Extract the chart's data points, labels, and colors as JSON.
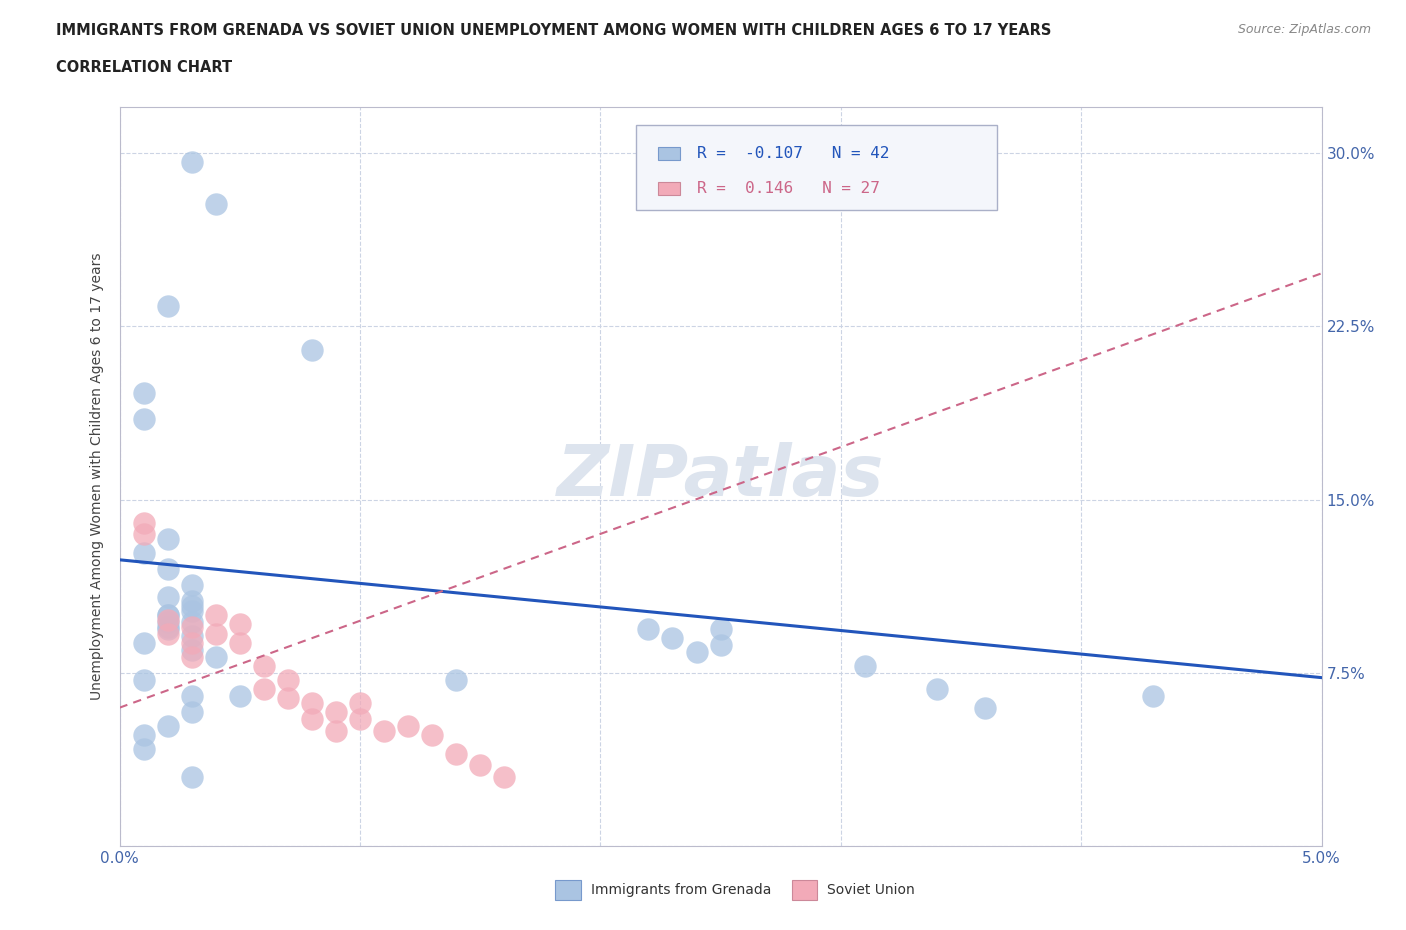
{
  "title_line1": "IMMIGRANTS FROM GRENADA VS SOVIET UNION UNEMPLOYMENT AMONG WOMEN WITH CHILDREN AGES 6 TO 17 YEARS",
  "title_line2": "CORRELATION CHART",
  "source_text": "Source: ZipAtlas.com",
  "ylabel": "Unemployment Among Women with Children Ages 6 to 17 years",
  "xlim": [
    0.0,
    0.05
  ],
  "ylim": [
    0.0,
    0.32
  ],
  "yticks": [
    0.0,
    0.075,
    0.15,
    0.225,
    0.3
  ],
  "yticklabels_right": [
    "",
    "7.5%",
    "15.0%",
    "22.5%",
    "30.0%"
  ],
  "xticks": [
    0.0,
    0.01,
    0.02,
    0.03,
    0.04,
    0.05
  ],
  "xticklabels": [
    "0.0%",
    "",
    "",
    "",
    "",
    "5.0%"
  ],
  "grenada_R": -0.107,
  "grenada_N": 42,
  "soviet_R": 0.146,
  "soviet_N": 27,
  "grenada_color": "#aac4e2",
  "soviet_color": "#f2aab8",
  "grenada_line_color": "#2255bb",
  "soviet_line_color": "#cc6688",
  "watermark_color": "#dde4ee",
  "grenada_label": "Immigrants from Grenada",
  "soviet_label": "Soviet Union",
  "grenada_scatter_x": [
    0.003,
    0.004,
    0.002,
    0.008,
    0.001,
    0.001,
    0.002,
    0.001,
    0.002,
    0.003,
    0.002,
    0.003,
    0.003,
    0.002,
    0.002,
    0.002,
    0.003,
    0.001,
    0.003,
    0.004,
    0.001,
    0.003,
    0.014,
    0.005,
    0.022,
    0.023,
    0.024,
    0.025,
    0.025,
    0.031,
    0.034,
    0.036,
    0.003,
    0.002,
    0.001,
    0.043,
    0.001,
    0.003,
    0.002,
    0.002,
    0.003,
    0.003
  ],
  "grenada_scatter_y": [
    0.296,
    0.278,
    0.234,
    0.215,
    0.196,
    0.185,
    0.133,
    0.127,
    0.12,
    0.113,
    0.108,
    0.106,
    0.104,
    0.1,
    0.097,
    0.094,
    0.091,
    0.088,
    0.085,
    0.082,
    0.072,
    0.065,
    0.072,
    0.065,
    0.094,
    0.09,
    0.084,
    0.094,
    0.087,
    0.078,
    0.068,
    0.06,
    0.058,
    0.052,
    0.048,
    0.065,
    0.042,
    0.03,
    0.1,
    0.095,
    0.102,
    0.097
  ],
  "soviet_scatter_x": [
    0.001,
    0.001,
    0.002,
    0.002,
    0.003,
    0.003,
    0.003,
    0.004,
    0.004,
    0.005,
    0.005,
    0.006,
    0.006,
    0.007,
    0.007,
    0.008,
    0.008,
    0.009,
    0.009,
    0.01,
    0.01,
    0.011,
    0.012,
    0.013,
    0.014,
    0.015,
    0.016
  ],
  "soviet_scatter_y": [
    0.14,
    0.135,
    0.098,
    0.092,
    0.095,
    0.088,
    0.082,
    0.1,
    0.092,
    0.096,
    0.088,
    0.078,
    0.068,
    0.072,
    0.064,
    0.062,
    0.055,
    0.058,
    0.05,
    0.062,
    0.055,
    0.05,
    0.052,
    0.048,
    0.04,
    0.035,
    0.03
  ],
  "grenada_trend_x0": 0.0,
  "grenada_trend_x1": 0.05,
  "grenada_trend_y0": 0.124,
  "grenada_trend_y1": 0.073,
  "soviet_trend_x0": 0.0,
  "soviet_trend_x1": 0.05,
  "soviet_trend_y0": 0.06,
  "soviet_trend_y1": 0.248,
  "grid_color": "#ccd4e4",
  "background_color": "#ffffff",
  "tick_label_color": "#4466aa",
  "ylabel_color": "#444444"
}
